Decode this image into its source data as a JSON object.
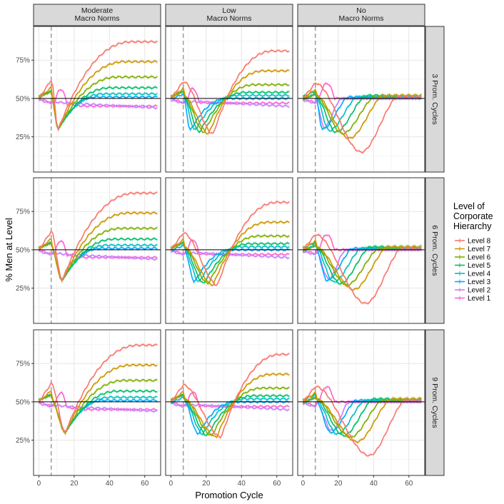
{
  "chart_data": {
    "type": "line",
    "ylabel": "% Men at Level",
    "xlabel": "Promotion Cycle",
    "column_facets": [
      "Moderate\nMacro Norms",
      "Low\nMacro Norms",
      "No\nMacro Norms"
    ],
    "row_facets": [
      "3 Prom. Cycles",
      "6 Prom. Cycles",
      "9 Prom. Cycles"
    ],
    "x_ticks": [
      0,
      20,
      40,
      60
    ],
    "y_ticks": [
      25,
      50,
      75
    ],
    "y_tick_labels": [
      "25%",
      "50%",
      "75%"
    ],
    "xlim": [
      -3,
      69
    ],
    "ylim": [
      2,
      97
    ],
    "reference_hline": 50,
    "reference_vline": 7,
    "legend": {
      "title": "Level of\nCorporate\nHierarchy",
      "position": "right",
      "entries": [
        {
          "name": "Level 8",
          "color": "#F8766D"
        },
        {
          "name": "Level 7",
          "color": "#CD9600"
        },
        {
          "name": "Level 6",
          "color": "#7CAE00"
        },
        {
          "name": "Level 5",
          "color": "#00BE67"
        },
        {
          "name": "Level 4",
          "color": "#00BFC4"
        },
        {
          "name": "Level 3",
          "color": "#00A9FF"
        },
        {
          "name": "Level 2",
          "color": "#C77CFF"
        },
        {
          "name": "Level 1",
          "color": "#FF61CC"
        }
      ]
    },
    "series_params": {
      "moderate": {
        "final": [
          87,
          74,
          64,
          57,
          53,
          51,
          47,
          45
        ],
        "min": [
          30,
          30,
          30,
          30,
          30,
          30,
          46,
          45
        ],
        "peak": 62
      },
      "low": {
        "final": [
          81,
          68,
          59,
          54,
          52,
          50,
          48,
          47
        ],
        "min": [
          27,
          27,
          28,
          28,
          29,
          29,
          47,
          47
        ],
        "peak": 61
      },
      "no": {
        "final": [
          50,
          51,
          50,
          51,
          50,
          50,
          50,
          50
        ],
        "min": [
          15,
          24,
          27,
          28,
          29,
          30,
          31,
          50
        ],
        "peak": 60
      }
    }
  }
}
